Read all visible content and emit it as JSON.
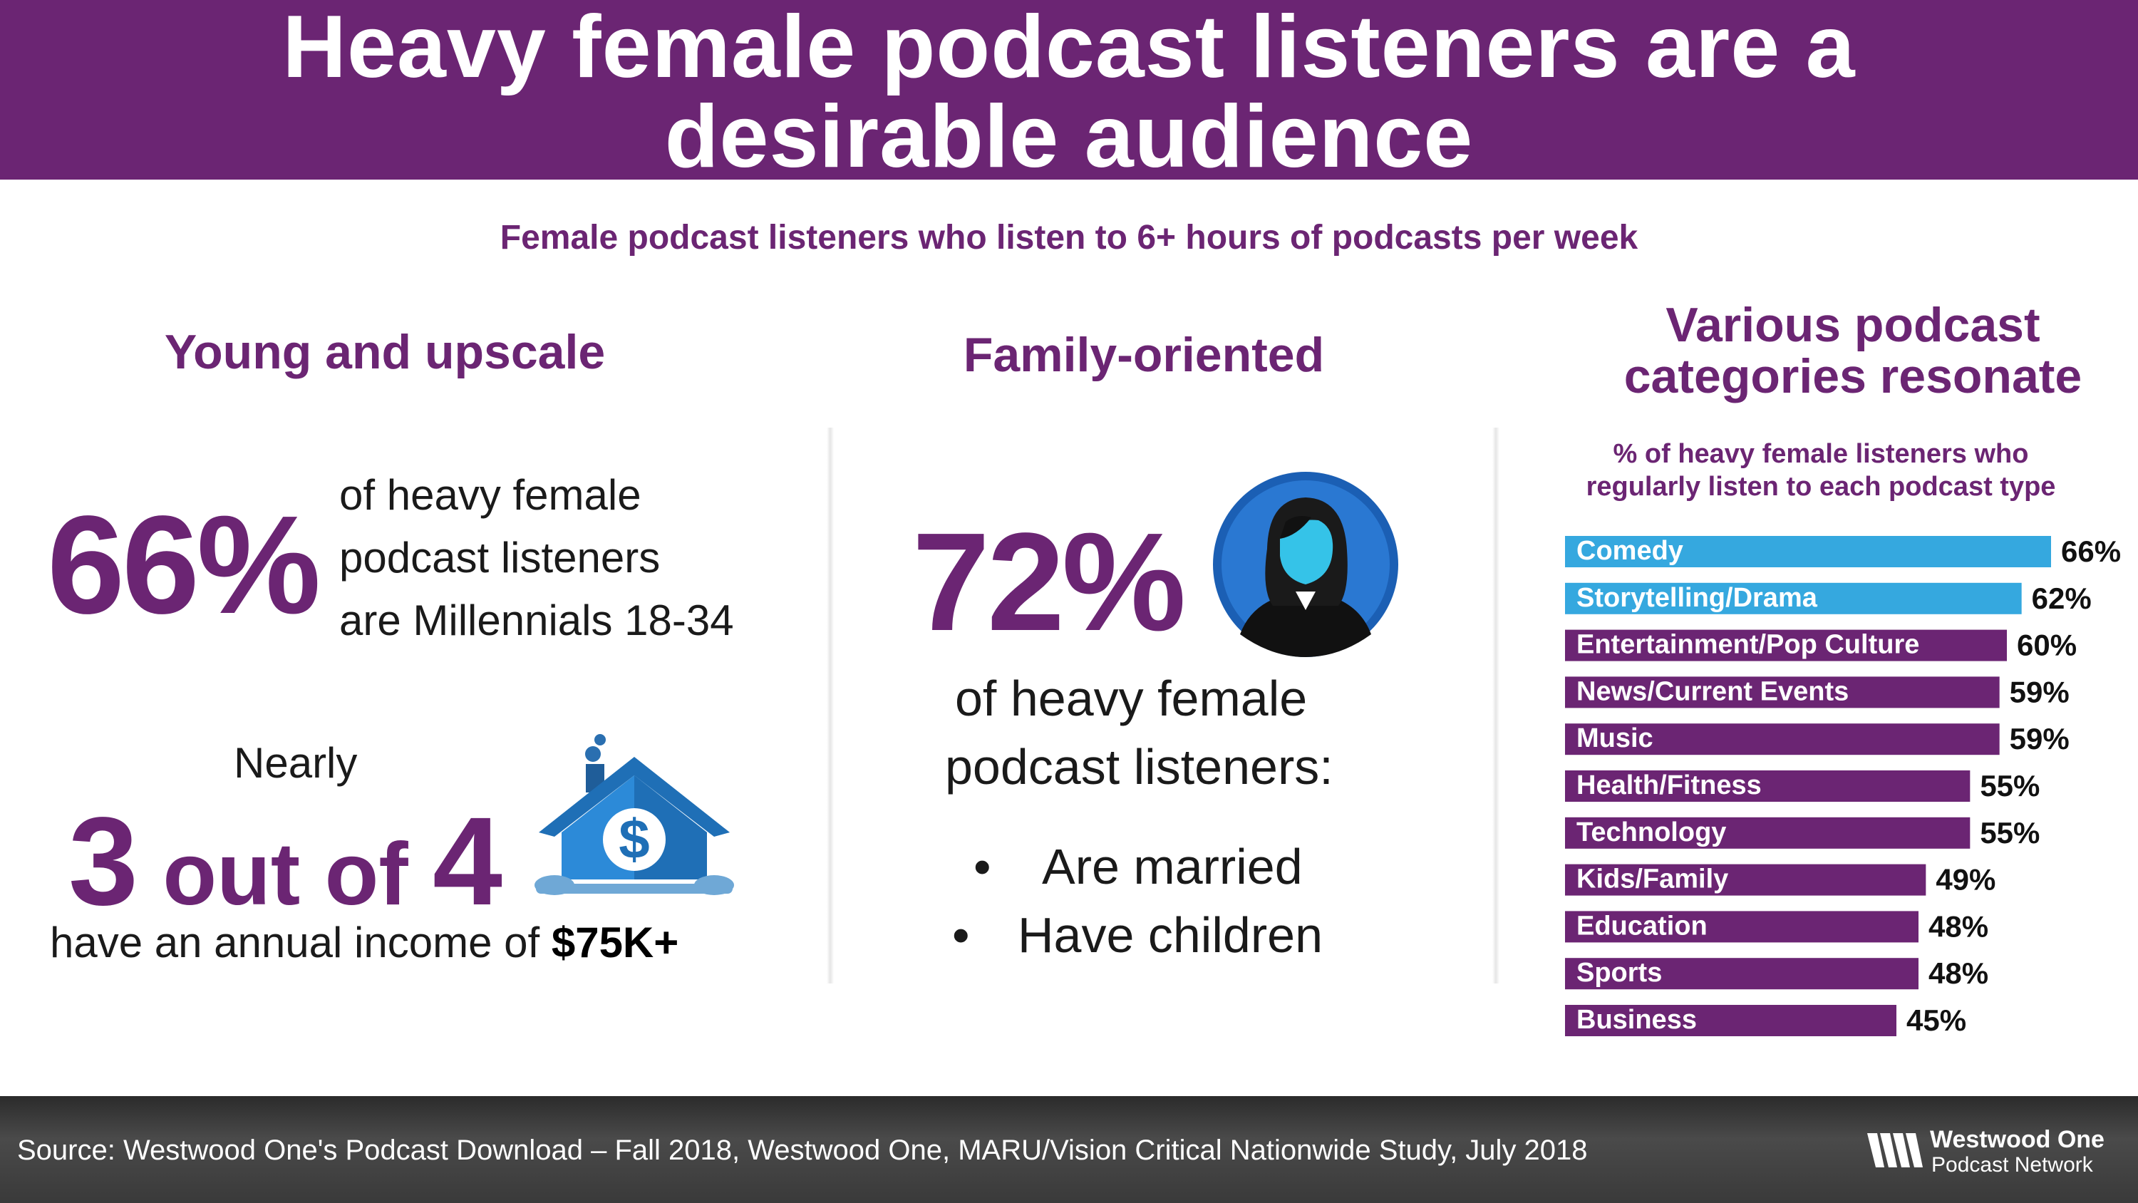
{
  "header": {
    "title_line1": "Heavy female podcast listeners are a",
    "title_line2": "desirable audience"
  },
  "subtitle": "Female podcast listeners who listen to 6+ hours of podcasts per week",
  "young": {
    "heading": "Young and upscale",
    "stat": "66%",
    "stat_text_line1": "of heavy female",
    "stat_text_line2": "podcast listeners",
    "stat_text_line3": "are Millennials 18-34",
    "nearly": "Nearly",
    "three": "3",
    "out_of": " out of ",
    "four": "4",
    "income_text": "have an annual income of ",
    "income_value": "$75K+",
    "icon": "house-dollar-icon"
  },
  "family": {
    "heading": "Family-oriented",
    "stat": "72%",
    "text_line1": "of heavy female",
    "text_line2": "podcast listeners:",
    "bullet_char": "•",
    "bullets": [
      "Are married",
      "Have children"
    ],
    "icon": "woman-avatar-icon"
  },
  "categories": {
    "heading_line1": "Various podcast",
    "heading_line2": "categories resonate",
    "note_line1": "% of heavy female listeners who",
    "note_line2": "regularly listen to each podcast type"
  },
  "chart_data": {
    "type": "bar",
    "orientation": "horizontal",
    "categories": [
      "Comedy",
      "Storytelling/Drama",
      "Entertainment/Pop Culture",
      "News/Current Events",
      "Music",
      "Health/Fitness",
      "Technology",
      "Kids/Family",
      "Education",
      "Sports",
      "Business"
    ],
    "values": [
      66,
      62,
      60,
      59,
      59,
      55,
      55,
      49,
      48,
      48,
      45
    ],
    "value_labels": [
      "66%",
      "62%",
      "60%",
      "59%",
      "59%",
      "55%",
      "55%",
      "49%",
      "48%",
      "48%",
      "45%"
    ],
    "highlight_count": 2,
    "xlim": [
      0,
      66
    ],
    "colors": {
      "highlight": "#35a8df",
      "default": "#6b2573"
    },
    "grid": false
  },
  "footer": {
    "source": "Source: Westwood One's Podcast Download – Fall 2018, Westwood One, MARU/Vision Critical Nationwide Study, July 2018",
    "logo_line1": "Westwood One",
    "logo_line2": "Podcast Network",
    "logo_icon": "westwood-one-logo-icon"
  },
  "colors": {
    "brand_purple": "#6b2573",
    "accent_blue": "#35a8df",
    "footer_dark": "#333333"
  }
}
